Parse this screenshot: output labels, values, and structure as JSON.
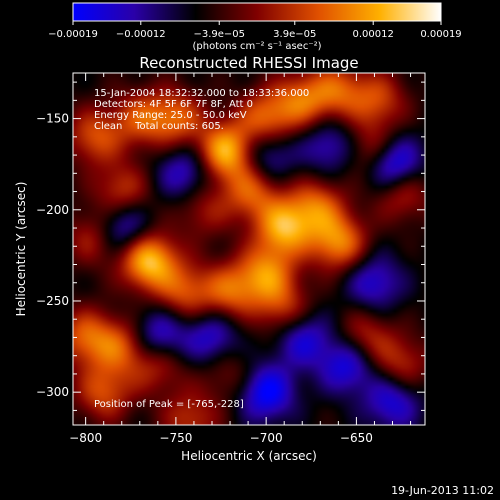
{
  "chart_data": {
    "type": "heatmap",
    "title": "Reconstructed RHESSI Image",
    "xlabel": "Heliocentric X (arcsec)",
    "ylabel": "Heliocentric Y (arcsec)",
    "xlim": [
      -807,
      -612
    ],
    "ylim": [
      -318,
      -125
    ],
    "x_ticks": [
      -800,
      -750,
      -700,
      -650
    ],
    "x_tick_labels": [
      "−800",
      "−750",
      "−700",
      "−650"
    ],
    "y_ticks": [
      -150,
      -200,
      -250,
      -300
    ],
    "y_tick_labels": [
      "−150",
      "−200",
      "−250",
      "−300"
    ],
    "colorbar": {
      "range": [
        -0.00019,
        0.00019
      ],
      "ticks": [
        -0.00019,
        -0.00012,
        -3.9e-05,
        3.9e-05,
        0.00012,
        0.00019
      ],
      "tick_labels": [
        "−0.00019",
        "−0.00012",
        "−3.9e−05",
        "3.9e−05",
        "0.00012",
        "0.00019"
      ],
      "units_label": "(photons cm⁻² s⁻¹ asec⁻²)",
      "colormap": [
        "#0000ff",
        "#2a00a8",
        "#000000",
        "#800000",
        "#e05000",
        "#ffb000",
        "#ffffff"
      ]
    },
    "annotations": [
      "15-Jan-2004 18:32:32.000 to 18:33:36.000",
      "Detectors: 4F 5F 6F 7F 8F, Att 0",
      "Energy Range: 25.0 - 50.0 keV",
      "Clean    Total counts: 605."
    ],
    "peak_label": "Position of Peak = [-765,-228]",
    "peak": [
      -765,
      -228
    ],
    "blobs": [
      {
        "x": -765,
        "y": -228,
        "v": 1.0
      },
      {
        "x": -722,
        "y": -168,
        "v": 0.95
      },
      {
        "x": -708,
        "y": -190,
        "v": 0.6
      },
      {
        "x": -690,
        "y": -210,
        "v": 0.85
      },
      {
        "x": -660,
        "y": -218,
        "v": 0.75
      },
      {
        "x": -672,
        "y": -198,
        "v": 0.6
      },
      {
        "x": -700,
        "y": -235,
        "v": 0.7
      },
      {
        "x": -720,
        "y": -245,
        "v": 0.6
      },
      {
        "x": -745,
        "y": -245,
        "v": 0.55
      },
      {
        "x": -690,
        "y": -255,
        "v": 0.5
      },
      {
        "x": -640,
        "y": -168,
        "v": 0.55
      },
      {
        "x": -625,
        "y": -190,
        "v": 0.5
      },
      {
        "x": -700,
        "y": -150,
        "v": 0.65
      },
      {
        "x": -680,
        "y": -140,
        "v": 0.6
      },
      {
        "x": -660,
        "y": -135,
        "v": 0.55
      },
      {
        "x": -638,
        "y": -140,
        "v": 0.5
      },
      {
        "x": -750,
        "y": -150,
        "v": 0.6
      },
      {
        "x": -770,
        "y": -150,
        "v": 0.5
      },
      {
        "x": -795,
        "y": -160,
        "v": 0.55
      },
      {
        "x": -780,
        "y": -190,
        "v": 0.5
      },
      {
        "x": -795,
        "y": -215,
        "v": 0.45
      },
      {
        "x": -800,
        "y": -270,
        "v": 0.6
      },
      {
        "x": -780,
        "y": -275,
        "v": 0.55
      },
      {
        "x": -760,
        "y": -285,
        "v": 0.45
      },
      {
        "x": -790,
        "y": -300,
        "v": 0.55
      },
      {
        "x": -742,
        "y": -315,
        "v": 0.45
      },
      {
        "x": -645,
        "y": -270,
        "v": 0.45
      },
      {
        "x": -625,
        "y": -285,
        "v": 0.45
      },
      {
        "x": -720,
        "y": -290,
        "v": 0.3
      },
      {
        "x": -735,
        "y": -200,
        "v": 0.35
      }
    ],
    "troughs": [
      {
        "x": -630,
        "y": -175,
        "v": -0.9
      },
      {
        "x": -700,
        "y": -300,
        "v": -0.7
      },
      {
        "x": -655,
        "y": -285,
        "v": -0.6
      },
      {
        "x": -760,
        "y": -270,
        "v": -0.6
      },
      {
        "x": -780,
        "y": -210,
        "v": -0.6
      },
      {
        "x": -700,
        "y": -170,
        "v": -0.5
      },
      {
        "x": -640,
        "y": -240,
        "v": -0.5
      },
      {
        "x": -745,
        "y": -180,
        "v": -0.5
      },
      {
        "x": -680,
        "y": -270,
        "v": -0.55
      },
      {
        "x": -730,
        "y": -270,
        "v": -0.5
      },
      {
        "x": -630,
        "y": -305,
        "v": -0.55
      },
      {
        "x": -665,
        "y": -165,
        "v": -0.45
      }
    ]
  },
  "footer": {
    "date": "19-Jun-2013 11:02"
  }
}
